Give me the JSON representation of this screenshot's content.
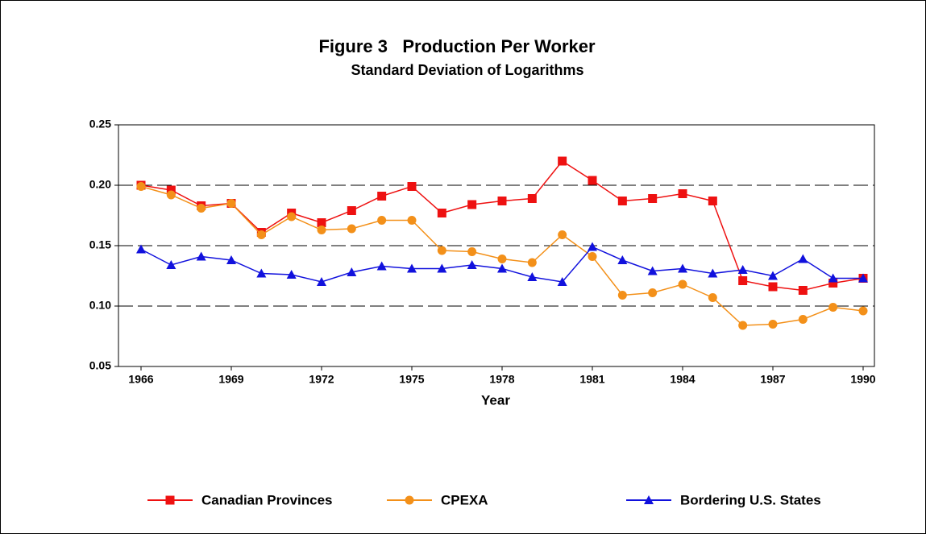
{
  "chart_data": {
    "type": "line",
    "title": "Figure 3   Production Per Worker",
    "subtitle": "Standard Deviation of Logarithms",
    "x_label": "Year",
    "x": [
      1966,
      1967,
      1968,
      1969,
      1970,
      1971,
      1972,
      1973,
      1974,
      1975,
      1976,
      1977,
      1978,
      1979,
      1980,
      1981,
      1982,
      1983,
      1984,
      1985,
      1986,
      1987,
      1988,
      1989,
      1990
    ],
    "series": [
      {
        "name": "Canadian Provinces",
        "color": "#ee1111",
        "marker": "square",
        "values": [
          0.2,
          0.196,
          0.183,
          0.185,
          0.161,
          0.177,
          0.169,
          0.179,
          0.191,
          0.199,
          0.177,
          0.184,
          0.187,
          0.189,
          0.22,
          0.204,
          0.187,
          0.189,
          0.193,
          0.187,
          0.121,
          0.116,
          0.113,
          0.119,
          0.123
        ]
      },
      {
        "name": "CPEXA",
        "color": "#f39019",
        "marker": "circle",
        "values": [
          0.199,
          0.192,
          0.181,
          0.185,
          0.159,
          0.174,
          0.163,
          0.164,
          0.171,
          0.171,
          0.146,
          0.145,
          0.139,
          0.136,
          0.159,
          0.141,
          0.109,
          0.111,
          0.118,
          0.107,
          0.084,
          0.085,
          0.089,
          0.099,
          0.096
        ]
      },
      {
        "name": "Bordering U.S. States",
        "color": "#1111dd",
        "marker": "triangle",
        "values": [
          0.147,
          0.134,
          0.141,
          0.138,
          0.127,
          0.126,
          0.12,
          0.128,
          0.133,
          0.131,
          0.131,
          0.134,
          0.131,
          0.124,
          0.12,
          0.149,
          0.138,
          0.129,
          0.131,
          0.127,
          0.13,
          0.125,
          0.139,
          0.123,
          0.123
        ]
      }
    ],
    "xlim": [
      1965.25,
      1990.375
    ],
    "xticks": [
      1966,
      1969,
      1972,
      1975,
      1978,
      1981,
      1984,
      1987,
      1990
    ],
    "ylim": [
      0.05,
      0.25
    ],
    "yticks": [
      0.05,
      {
        "value": 0.1,
        "label": "0.10"
      },
      0.15,
      {
        "value": 0.2,
        "label": "0.20"
      },
      0.25
    ],
    "grid": true,
    "legend": "bottom"
  }
}
